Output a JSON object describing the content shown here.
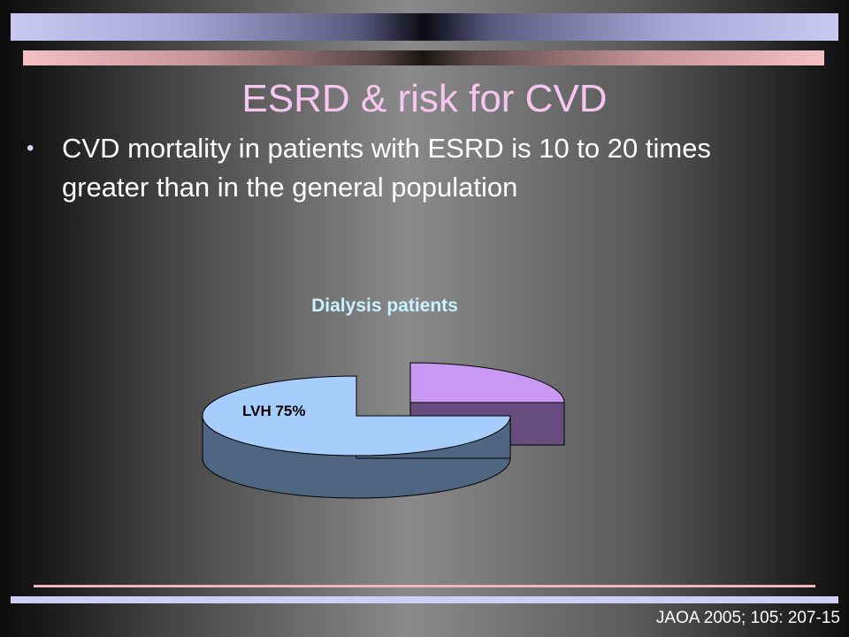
{
  "slide": {
    "title": "ESRD & risk for CVD",
    "bullet": "CVD mortality in patients with ESRD is 10 to 20 times greater than in the general population",
    "bullet_marker": "•",
    "citation": "JAOA 2005; 105: 207-15"
  },
  "chart_data": {
    "type": "pie",
    "title": "Dialysis patients",
    "slices": [
      {
        "name": "LVH",
        "value": 75,
        "label": "LVH 75%",
        "color_top": "#a6cdfb",
        "color_side": "#4e6681"
      },
      {
        "name": "",
        "value": 25,
        "label": "",
        "color_top": "#c998f2",
        "color_side": "#664d7e"
      }
    ],
    "exploded_slice": 1
  },
  "colors": {
    "title": "#f6c6f0",
    "chart_title": "#c8f2ff",
    "outline": "#000000"
  }
}
